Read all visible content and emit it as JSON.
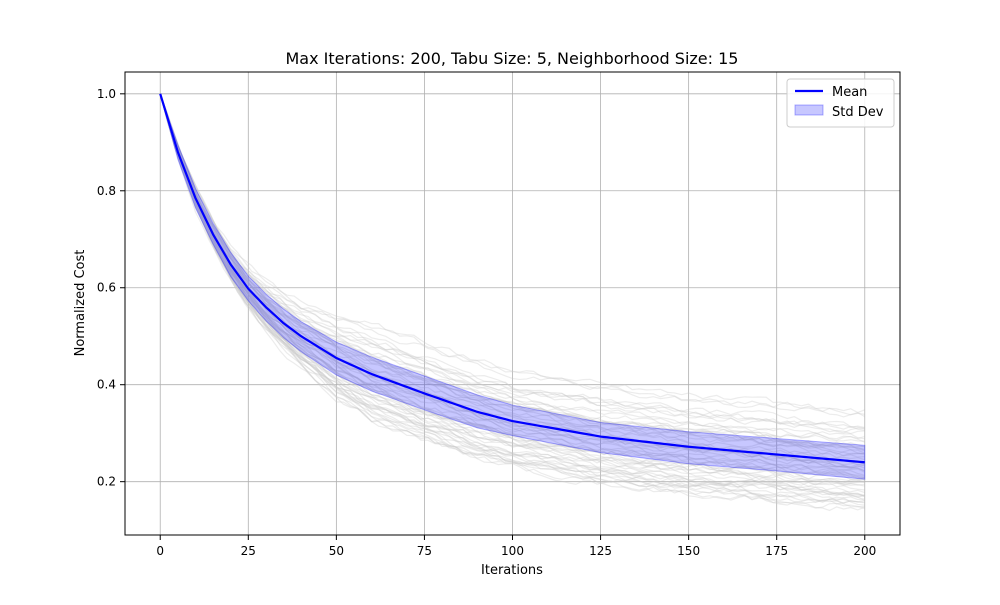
{
  "chart_data": {
    "type": "line",
    "title": "Max Iterations: 200, Tabu Size: 5, Neighborhood Size: 15",
    "xlabel": "Iterations",
    "ylabel": "Normalized Cost",
    "xlim": [
      -10,
      210
    ],
    "ylim": [
      0.09,
      1.045
    ],
    "xticks": [
      0,
      25,
      50,
      75,
      100,
      125,
      150,
      175,
      200
    ],
    "yticks": [
      0.2,
      0.4,
      0.6,
      0.8,
      1.0
    ],
    "xtick_labels": [
      "0",
      "25",
      "50",
      "75",
      "100",
      "125",
      "150",
      "175",
      "200"
    ],
    "ytick_labels": [
      "0.2",
      "0.4",
      "0.6",
      "0.8",
      "1.0"
    ],
    "grid": true,
    "legend_position": "top-right",
    "x": [
      0,
      5,
      10,
      15,
      20,
      25,
      30,
      35,
      40,
      50,
      60,
      75,
      90,
      100,
      125,
      150,
      175,
      200
    ],
    "series": [
      {
        "name": "Mean",
        "color": "#0000ff",
        "values": [
          1.0,
          0.88,
          0.785,
          0.71,
          0.648,
          0.598,
          0.56,
          0.527,
          0.5,
          0.455,
          0.422,
          0.382,
          0.344,
          0.325,
          0.293,
          0.272,
          0.256,
          0.24
        ]
      },
      {
        "name": "Std Dev",
        "kind": "band",
        "color": "#0000ff",
        "lower": [
          1.0,
          0.865,
          0.765,
          0.69,
          0.623,
          0.573,
          0.532,
          0.497,
          0.468,
          0.42,
          0.387,
          0.348,
          0.311,
          0.295,
          0.26,
          0.237,
          0.222,
          0.205
        ],
        "upper": [
          1.0,
          0.895,
          0.805,
          0.733,
          0.673,
          0.624,
          0.587,
          0.556,
          0.53,
          0.488,
          0.457,
          0.418,
          0.379,
          0.358,
          0.322,
          0.303,
          0.289,
          0.275
        ]
      }
    ],
    "background_runs": {
      "count": 60,
      "color": "#c8c8c8",
      "min_final": 0.14,
      "max_final": 0.35
    }
  }
}
